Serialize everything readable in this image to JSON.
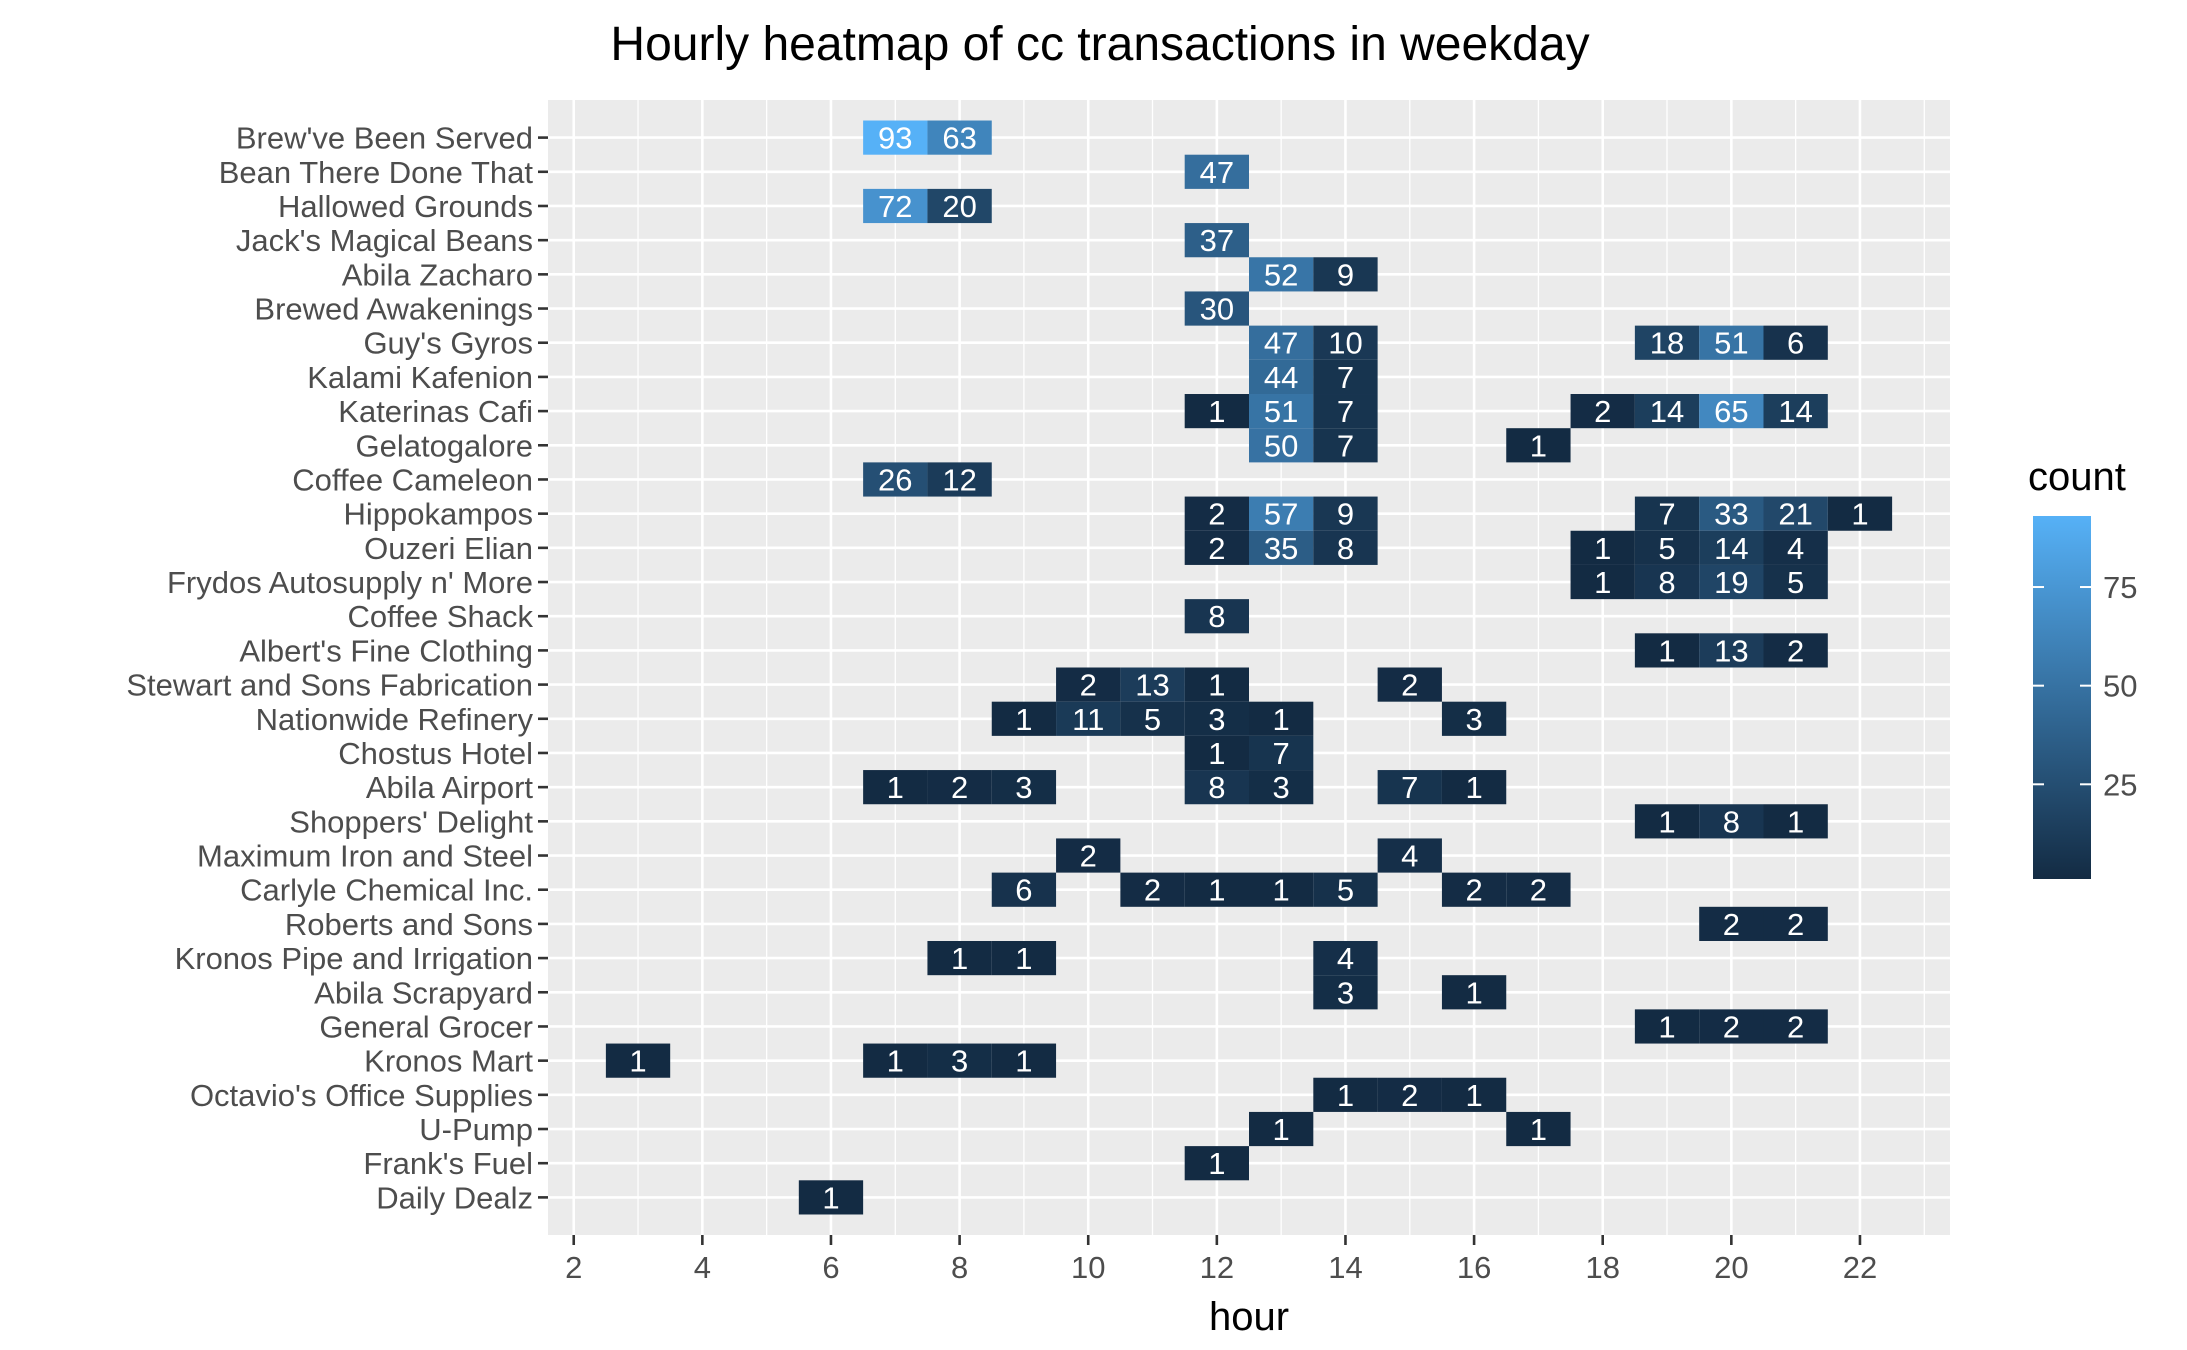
{
  "chart_data": {
    "type": "heatmap",
    "title": "Hourly heatmap of cc transactions in weekday",
    "xlabel": "hour",
    "ylabel": "",
    "xlim": [
      1.6,
      23.4
    ],
    "x_ticks": [
      2,
      4,
      6,
      8,
      10,
      12,
      14,
      16,
      18,
      20,
      22
    ],
    "x_tick_labels": [
      "2",
      "4",
      "6",
      "8",
      "10",
      "12",
      "14",
      "16",
      "18",
      "20",
      "22"
    ],
    "categories": [
      "Brew've Been Served",
      "Bean There Done That",
      "Hallowed Grounds",
      "Jack's Magical Beans",
      "Abila Zacharo",
      "Brewed Awakenings",
      "Guy's Gyros",
      "Kalami Kafenion",
      "Katerina\u0001s Cafi",
      "Gelatogalore",
      "Coffee Cameleon",
      "Hippokampos",
      "Ouzeri Elian",
      "Frydos Autosupply n' More",
      "Coffee Shack",
      "Albert's Fine Clothing",
      "Stewart and Sons Fabrication",
      "Nationwide Refinery",
      "Chostus Hotel",
      "Abila Airport",
      "Shoppers' Delight",
      "Maximum Iron and Steel",
      "Carlyle Chemical Inc.",
      "Roberts and Sons",
      "Kronos Pipe and Irrigation",
      "Abila Scrapyard",
      "General Grocer",
      "Kronos Mart",
      "Octavio's Office Supplies",
      "U-Pump",
      "Frank's Fuel",
      "Daily Dealz"
    ],
    "cells": [
      {
        "location": "Brew've Been Served",
        "hour": 7,
        "count": 93
      },
      {
        "location": "Brew've Been Served",
        "hour": 8,
        "count": 63
      },
      {
        "location": "Bean There Done That",
        "hour": 12,
        "count": 47
      },
      {
        "location": "Hallowed Grounds",
        "hour": 7,
        "count": 72
      },
      {
        "location": "Hallowed Grounds",
        "hour": 8,
        "count": 20
      },
      {
        "location": "Jack's Magical Beans",
        "hour": 12,
        "count": 37
      },
      {
        "location": "Abila Zacharo",
        "hour": 13,
        "count": 52
      },
      {
        "location": "Abila Zacharo",
        "hour": 14,
        "count": 9
      },
      {
        "location": "Brewed Awakenings",
        "hour": 12,
        "count": 30
      },
      {
        "location": "Guy's Gyros",
        "hour": 13,
        "count": 47
      },
      {
        "location": "Guy's Gyros",
        "hour": 14,
        "count": 10
      },
      {
        "location": "Guy's Gyros",
        "hour": 19,
        "count": 18
      },
      {
        "location": "Guy's Gyros",
        "hour": 20,
        "count": 51
      },
      {
        "location": "Guy's Gyros",
        "hour": 21,
        "count": 6
      },
      {
        "location": "Kalami Kafenion",
        "hour": 13,
        "count": 44
      },
      {
        "location": "Kalami Kafenion",
        "hour": 14,
        "count": 7
      },
      {
        "location": "Katerina\u0001s Cafi",
        "hour": 12,
        "count": 1
      },
      {
        "location": "Katerina\u0001s Cafi",
        "hour": 13,
        "count": 51
      },
      {
        "location": "Katerina\u0001s Cafi",
        "hour": 14,
        "count": 7
      },
      {
        "location": "Katerina\u0001s Cafi",
        "hour": 18,
        "count": 2
      },
      {
        "location": "Katerina\u0001s Cafi",
        "hour": 19,
        "count": 14
      },
      {
        "location": "Katerina\u0001s Cafi",
        "hour": 20,
        "count": 65
      },
      {
        "location": "Katerina\u0001s Cafi",
        "hour": 21,
        "count": 14
      },
      {
        "location": "Gelatogalore",
        "hour": 13,
        "count": 50
      },
      {
        "location": "Gelatogalore",
        "hour": 14,
        "count": 7
      },
      {
        "location": "Gelatogalore",
        "hour": 17,
        "count": 1
      },
      {
        "location": "Coffee Cameleon",
        "hour": 7,
        "count": 26
      },
      {
        "location": "Coffee Cameleon",
        "hour": 8,
        "count": 12
      },
      {
        "location": "Hippokampos",
        "hour": 12,
        "count": 2
      },
      {
        "location": "Hippokampos",
        "hour": 13,
        "count": 57
      },
      {
        "location": "Hippokampos",
        "hour": 14,
        "count": 9
      },
      {
        "location": "Hippokampos",
        "hour": 19,
        "count": 7
      },
      {
        "location": "Hippokampos",
        "hour": 20,
        "count": 33
      },
      {
        "location": "Hippokampos",
        "hour": 21,
        "count": 21
      },
      {
        "location": "Hippokampos",
        "hour": 22,
        "count": 1
      },
      {
        "location": "Ouzeri Elian",
        "hour": 12,
        "count": 2
      },
      {
        "location": "Ouzeri Elian",
        "hour": 13,
        "count": 35
      },
      {
        "location": "Ouzeri Elian",
        "hour": 14,
        "count": 8
      },
      {
        "location": "Ouzeri Elian",
        "hour": 18,
        "count": 1
      },
      {
        "location": "Ouzeri Elian",
        "hour": 19,
        "count": 5
      },
      {
        "location": "Ouzeri Elian",
        "hour": 20,
        "count": 14
      },
      {
        "location": "Ouzeri Elian",
        "hour": 21,
        "count": 4
      },
      {
        "location": "Frydos Autosupply n' More",
        "hour": 18,
        "count": 1
      },
      {
        "location": "Frydos Autosupply n' More",
        "hour": 19,
        "count": 8
      },
      {
        "location": "Frydos Autosupply n' More",
        "hour": 20,
        "count": 19
      },
      {
        "location": "Frydos Autosupply n' More",
        "hour": 21,
        "count": 5
      },
      {
        "location": "Coffee Shack",
        "hour": 12,
        "count": 8
      },
      {
        "location": "Albert's Fine Clothing",
        "hour": 19,
        "count": 1
      },
      {
        "location": "Albert's Fine Clothing",
        "hour": 20,
        "count": 13
      },
      {
        "location": "Albert's Fine Clothing",
        "hour": 21,
        "count": 2
      },
      {
        "location": "Stewart and Sons Fabrication",
        "hour": 10,
        "count": 2
      },
      {
        "location": "Stewart and Sons Fabrication",
        "hour": 11,
        "count": 13
      },
      {
        "location": "Stewart and Sons Fabrication",
        "hour": 12,
        "count": 1
      },
      {
        "location": "Stewart and Sons Fabrication",
        "hour": 15,
        "count": 2
      },
      {
        "location": "Nationwide Refinery",
        "hour": 9,
        "count": 1
      },
      {
        "location": "Nationwide Refinery",
        "hour": 10,
        "count": 11
      },
      {
        "location": "Nationwide Refinery",
        "hour": 11,
        "count": 5
      },
      {
        "location": "Nationwide Refinery",
        "hour": 12,
        "count": 3
      },
      {
        "location": "Nationwide Refinery",
        "hour": 13,
        "count": 1
      },
      {
        "location": "Nationwide Refinery",
        "hour": 16,
        "count": 3
      },
      {
        "location": "Chostus Hotel",
        "hour": 12,
        "count": 1
      },
      {
        "location": "Chostus Hotel",
        "hour": 13,
        "count": 7
      },
      {
        "location": "Abila Airport",
        "hour": 7,
        "count": 1
      },
      {
        "location": "Abila Airport",
        "hour": 8,
        "count": 2
      },
      {
        "location": "Abila Airport",
        "hour": 9,
        "count": 3
      },
      {
        "location": "Abila Airport",
        "hour": 12,
        "count": 8
      },
      {
        "location": "Abila Airport",
        "hour": 13,
        "count": 3
      },
      {
        "location": "Abila Airport",
        "hour": 15,
        "count": 7
      },
      {
        "location": "Abila Airport",
        "hour": 16,
        "count": 1
      },
      {
        "location": "Shoppers' Delight",
        "hour": 19,
        "count": 1
      },
      {
        "location": "Shoppers' Delight",
        "hour": 20,
        "count": 8
      },
      {
        "location": "Shoppers' Delight",
        "hour": 21,
        "count": 1
      },
      {
        "location": "Maximum Iron and Steel",
        "hour": 10,
        "count": 2
      },
      {
        "location": "Maximum Iron and Steel",
        "hour": 15,
        "count": 4
      },
      {
        "location": "Carlyle Chemical Inc.",
        "hour": 9,
        "count": 6
      },
      {
        "location": "Carlyle Chemical Inc.",
        "hour": 11,
        "count": 2
      },
      {
        "location": "Carlyle Chemical Inc.",
        "hour": 12,
        "count": 1
      },
      {
        "location": "Carlyle Chemical Inc.",
        "hour": 13,
        "count": 1
      },
      {
        "location": "Carlyle Chemical Inc.",
        "hour": 14,
        "count": 5
      },
      {
        "location": "Carlyle Chemical Inc.",
        "hour": 16,
        "count": 2
      },
      {
        "location": "Carlyle Chemical Inc.",
        "hour": 17,
        "count": 2
      },
      {
        "location": "Roberts and Sons",
        "hour": 20,
        "count": 2
      },
      {
        "location": "Roberts and Sons",
        "hour": 21,
        "count": 2
      },
      {
        "location": "Kronos Pipe and Irrigation",
        "hour": 8,
        "count": 1
      },
      {
        "location": "Kronos Pipe and Irrigation",
        "hour": 9,
        "count": 1
      },
      {
        "location": "Kronos Pipe and Irrigation",
        "hour": 14,
        "count": 4
      },
      {
        "location": "Abila Scrapyard",
        "hour": 14,
        "count": 3
      },
      {
        "location": "Abila Scrapyard",
        "hour": 16,
        "count": 1
      },
      {
        "location": "General Grocer",
        "hour": 19,
        "count": 1
      },
      {
        "location": "General Grocer",
        "hour": 20,
        "count": 2
      },
      {
        "location": "General Grocer",
        "hour": 21,
        "count": 2
      },
      {
        "location": "Kronos Mart",
        "hour": 3,
        "count": 1
      },
      {
        "location": "Kronos Mart",
        "hour": 7,
        "count": 1
      },
      {
        "location": "Kronos Mart",
        "hour": 8,
        "count": 3
      },
      {
        "location": "Kronos Mart",
        "hour": 9,
        "count": 1
      },
      {
        "location": "Octavio's Office Supplies",
        "hour": 14,
        "count": 1
      },
      {
        "location": "Octavio's Office Supplies",
        "hour": 15,
        "count": 2
      },
      {
        "location": "Octavio's Office Supplies",
        "hour": 16,
        "count": 1
      },
      {
        "location": "U-Pump",
        "hour": 13,
        "count": 1
      },
      {
        "location": "U-Pump",
        "hour": 17,
        "count": 1
      },
      {
        "location": "Frank's Fuel",
        "hour": 12,
        "count": 1
      },
      {
        "location": "Daily Dealz",
        "hour": 6,
        "count": 1
      }
    ],
    "legend": {
      "title": "count",
      "position": "right",
      "ticks": [
        25,
        50,
        75
      ],
      "tick_labels": [
        "25",
        "50",
        "75"
      ],
      "min": 1,
      "max": 93,
      "low_color": "#132B43",
      "high_color": "#56B1F7"
    },
    "grid": true,
    "panel_background": "#EBEBEB",
    "grid_color": "#FFFFFF",
    "cell_label_color": "#FFFFFF"
  }
}
